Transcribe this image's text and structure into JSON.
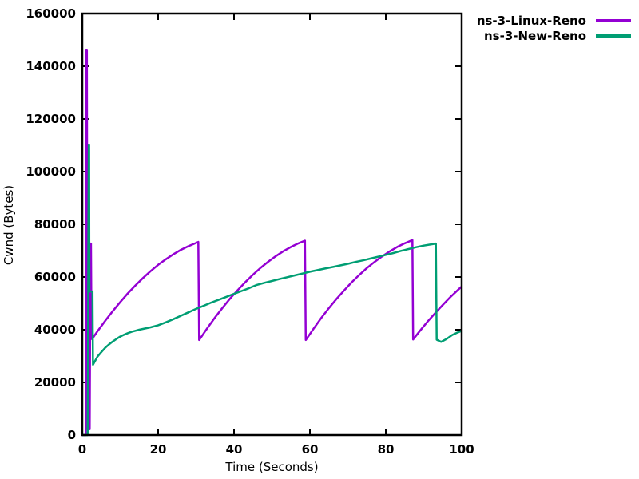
{
  "chart_data": {
    "type": "line",
    "title": "",
    "xlabel": "Time (Seconds)",
    "ylabel": "Cwnd (Bytes)",
    "xlim": [
      0,
      100
    ],
    "ylim": [
      0,
      160000
    ],
    "x_ticks": [
      0,
      20,
      40,
      60,
      80,
      100
    ],
    "y_ticks": [
      0,
      20000,
      40000,
      60000,
      80000,
      100000,
      120000,
      140000,
      160000
    ],
    "grid": false,
    "legend_position": "outside-top-right",
    "axis_color": "#000000",
    "series": [
      {
        "name": "ns-3-Linux-Reno",
        "color": "#9400D3",
        "points": [
          [
            0,
            0
          ],
          [
            0.88,
            0
          ],
          [
            0.95,
            70000
          ],
          [
            1.0,
            146000
          ],
          [
            1.22,
            146000
          ],
          [
            1.3,
            60000
          ],
          [
            1.38,
            2500
          ],
          [
            1.95,
            2500
          ],
          [
            2.1,
            50000
          ],
          [
            2.2,
            72700
          ],
          [
            2.3,
            72700
          ],
          [
            2.45,
            36500
          ],
          [
            2.6,
            36500
          ],
          [
            4,
            39400
          ],
          [
            6,
            43300
          ],
          [
            8,
            47000
          ],
          [
            10,
            50500
          ],
          [
            12,
            53800
          ],
          [
            14,
            56800
          ],
          [
            16,
            59600
          ],
          [
            18,
            62200
          ],
          [
            20,
            64600
          ],
          [
            22,
            66700
          ],
          [
            24,
            68600
          ],
          [
            26,
            70300
          ],
          [
            28,
            71700
          ],
          [
            29.5,
            72600
          ],
          [
            30.6,
            73300
          ],
          [
            30.8,
            36100
          ],
          [
            33,
            40700
          ],
          [
            35,
            44700
          ],
          [
            37,
            48400
          ],
          [
            39,
            51900
          ],
          [
            41,
            55100
          ],
          [
            43,
            58100
          ],
          [
            45,
            60900
          ],
          [
            47,
            63500
          ],
          [
            49,
            65800
          ],
          [
            51,
            67900
          ],
          [
            53,
            69800
          ],
          [
            55,
            71400
          ],
          [
            57,
            72800
          ],
          [
            58.7,
            73800
          ],
          [
            58.9,
            36100
          ],
          [
            61,
            40500
          ],
          [
            63,
            44500
          ],
          [
            65,
            48200
          ],
          [
            67,
            51700
          ],
          [
            69,
            54900
          ],
          [
            71,
            58000
          ],
          [
            73,
            60800
          ],
          [
            75,
            63400
          ],
          [
            77,
            65700
          ],
          [
            79,
            67800
          ],
          [
            81,
            69700
          ],
          [
            83,
            71400
          ],
          [
            85,
            72800
          ],
          [
            87,
            74000
          ],
          [
            87.2,
            36300
          ],
          [
            89,
            39600
          ],
          [
            91,
            43100
          ],
          [
            93,
            46300
          ],
          [
            95,
            49400
          ],
          [
            97,
            52400
          ],
          [
            99,
            55100
          ],
          [
            100,
            56400
          ]
        ]
      },
      {
        "name": "ns-3-New-Reno",
        "color": "#009E73",
        "points": [
          [
            0,
            0
          ],
          [
            1.42,
            0
          ],
          [
            1.5,
            20000
          ],
          [
            1.62,
            80000
          ],
          [
            1.72,
            110000
          ],
          [
            1.82,
            110000
          ],
          [
            1.88,
            54500
          ],
          [
            2.7,
            54500
          ],
          [
            2.82,
            26700
          ],
          [
            4,
            29800
          ],
          [
            5,
            31500
          ],
          [
            6,
            33100
          ],
          [
            7,
            34400
          ],
          [
            8,
            35500
          ],
          [
            9,
            36500
          ],
          [
            10,
            37400
          ],
          [
            11,
            38100
          ],
          [
            12,
            38700
          ],
          [
            13,
            39200
          ],
          [
            14,
            39600
          ],
          [
            15,
            40000
          ],
          [
            16,
            40300
          ],
          [
            18,
            40900
          ],
          [
            20,
            41700
          ],
          [
            22,
            42800
          ],
          [
            24,
            44000
          ],
          [
            26,
            45300
          ],
          [
            28,
            46600
          ],
          [
            30,
            47900
          ],
          [
            32,
            49100
          ],
          [
            34,
            50300
          ],
          [
            36,
            51400
          ],
          [
            38,
            52500
          ],
          [
            40,
            53600
          ],
          [
            42,
            54700
          ],
          [
            44,
            55800
          ],
          [
            46,
            57000
          ],
          [
            48,
            57800
          ],
          [
            50,
            58500
          ],
          [
            52,
            59200
          ],
          [
            54,
            59900
          ],
          [
            56,
            60600
          ],
          [
            58,
            61300
          ],
          [
            60,
            62000
          ],
          [
            62,
            62600
          ],
          [
            64,
            63200
          ],
          [
            66,
            63800
          ],
          [
            68,
            64400
          ],
          [
            70,
            65000
          ],
          [
            72,
            65700
          ],
          [
            74,
            66300
          ],
          [
            76,
            67000
          ],
          [
            78,
            67700
          ],
          [
            80,
            68400
          ],
          [
            82,
            69100
          ],
          [
            84,
            69900
          ],
          [
            86,
            70600
          ],
          [
            88,
            71300
          ],
          [
            90,
            71900
          ],
          [
            92,
            72400
          ],
          [
            93.2,
            72700
          ],
          [
            93.4,
            36200
          ],
          [
            94.6,
            35400
          ],
          [
            96,
            36500
          ],
          [
            97.5,
            38000
          ],
          [
            99,
            39000
          ],
          [
            100,
            39600
          ]
        ]
      }
    ]
  },
  "legend": {
    "items": [
      {
        "label": "ns-3-Linux-Reno"
      },
      {
        "label": "ns-3-New-Reno"
      }
    ]
  }
}
